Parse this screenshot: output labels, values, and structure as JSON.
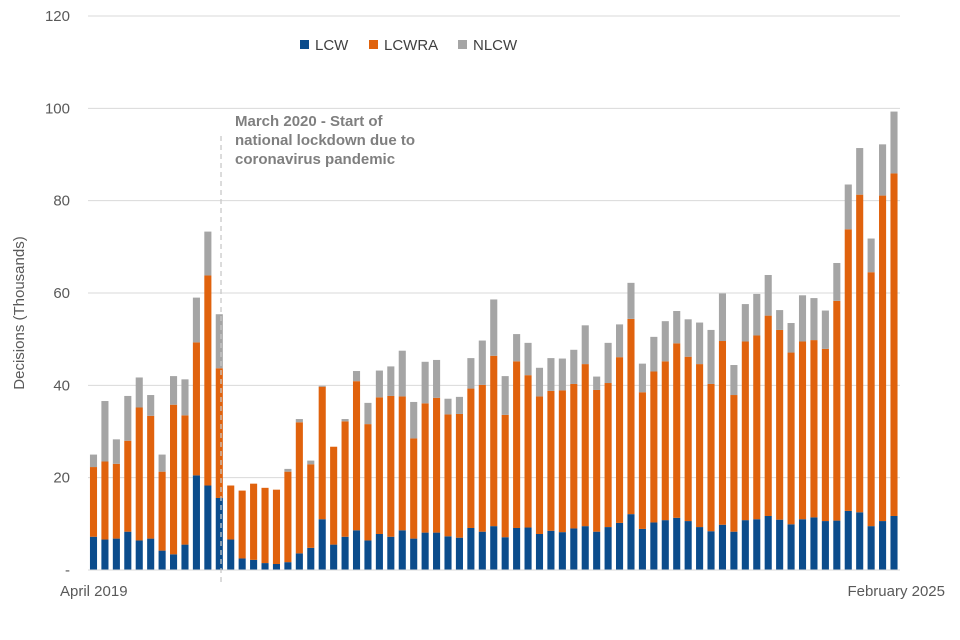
{
  "chart_data": {
    "type": "bar",
    "stacked": true,
    "title": "",
    "xlabel": "",
    "ylabel": "Decisions (Thousands)",
    "ylim": [
      0,
      120
    ],
    "yticks": [
      0,
      20,
      40,
      60,
      80,
      100,
      120
    ],
    "ytick_labels": [
      "-",
      "20",
      "40",
      "60",
      "80",
      "100",
      "120"
    ],
    "x_start_label": "April 2019",
    "x_end_label": "February 2025",
    "grid": true,
    "legend_position": "top",
    "series": [
      {
        "name": "LCW",
        "color": "#0b4c8c",
        "values": [
          7.2,
          6.6,
          6.8,
          8.3,
          6.4,
          6.8,
          4.2,
          3.4,
          5.5,
          20.5,
          18.3,
          15.6,
          6.6,
          2.5,
          2.2,
          1.5,
          1.3,
          1.7,
          3.6,
          4.8,
          11.0,
          5.5,
          7.2,
          8.6,
          6.4,
          7.8,
          7.2,
          8.6,
          6.8,
          8.1,
          8.1,
          7.3,
          7.0,
          9.1,
          8.3,
          9.5,
          7.1,
          9.1,
          9.2,
          7.8,
          8.5,
          8.2,
          9.0,
          9.5,
          8.3,
          9.3,
          10.2,
          12.1,
          8.9,
          10.3,
          10.8,
          11.3,
          10.6,
          9.3,
          8.4,
          9.8,
          8.3,
          10.8,
          11.0,
          11.7,
          10.9,
          9.9,
          11.0,
          11.4,
          10.6,
          10.7,
          12.8,
          12.5,
          9.5,
          10.6,
          11.7
        ]
      },
      {
        "name": "LCWRA",
        "color": "#e0620d",
        "values": [
          15.1,
          16.9,
          16.2,
          19.7,
          28.8,
          26.6,
          17.1,
          32.4,
          28.0,
          28.8,
          45.5,
          28.1,
          11.7,
          14.7,
          16.5,
          16.3,
          16.1,
          19.6,
          28.4,
          18.1,
          28.7,
          21.2,
          25.0,
          32.3,
          25.2,
          29.6,
          30.5,
          29.0,
          21.7,
          28.0,
          29.2,
          26.4,
          26.8,
          30.2,
          31.8,
          36.9,
          26.5,
          36.1,
          33.0,
          29.8,
          30.3,
          30.7,
          31.3,
          35.1,
          30.7,
          31.2,
          35.9,
          42.3,
          29.6,
          32.7,
          34.4,
          37.8,
          35.6,
          35.3,
          31.9,
          39.8,
          29.6,
          38.7,
          39.8,
          43.4,
          41.1,
          37.2,
          38.5,
          38.4,
          37.3,
          47.6,
          61.0,
          68.8,
          55.0,
          70.5,
          74.2
        ]
      },
      {
        "name": "NLCW",
        "color": "#a5a5a5",
        "values": [
          2.7,
          13.1,
          5.3,
          9.7,
          6.5,
          4.5,
          3.7,
          6.2,
          7.8,
          9.7,
          9.5,
          11.7,
          0.0,
          0.0,
          0.0,
          0.0,
          0.0,
          0.6,
          0.7,
          0.8,
          0.2,
          0.0,
          0.5,
          2.2,
          4.6,
          5.8,
          6.4,
          9.9,
          7.9,
          9.0,
          8.2,
          3.4,
          3.7,
          6.6,
          9.6,
          12.2,
          8.4,
          5.9,
          7.0,
          6.2,
          7.1,
          6.9,
          7.4,
          8.4,
          2.9,
          8.7,
          7.1,
          7.8,
          6.2,
          7.5,
          8.7,
          7.0,
          8.1,
          9.0,
          11.7,
          10.3,
          6.5,
          8.1,
          9.0,
          8.8,
          4.3,
          6.4,
          10.0,
          9.1,
          8.3,
          8.2,
          9.7,
          10.1,
          7.3,
          11.1,
          13.4
        ]
      }
    ],
    "annotations": [
      {
        "lines": [
          "March 2020 - Start of",
          "national lockdown due to",
          "coronavirus pandemic"
        ],
        "at_bar_index": 11
      }
    ]
  }
}
